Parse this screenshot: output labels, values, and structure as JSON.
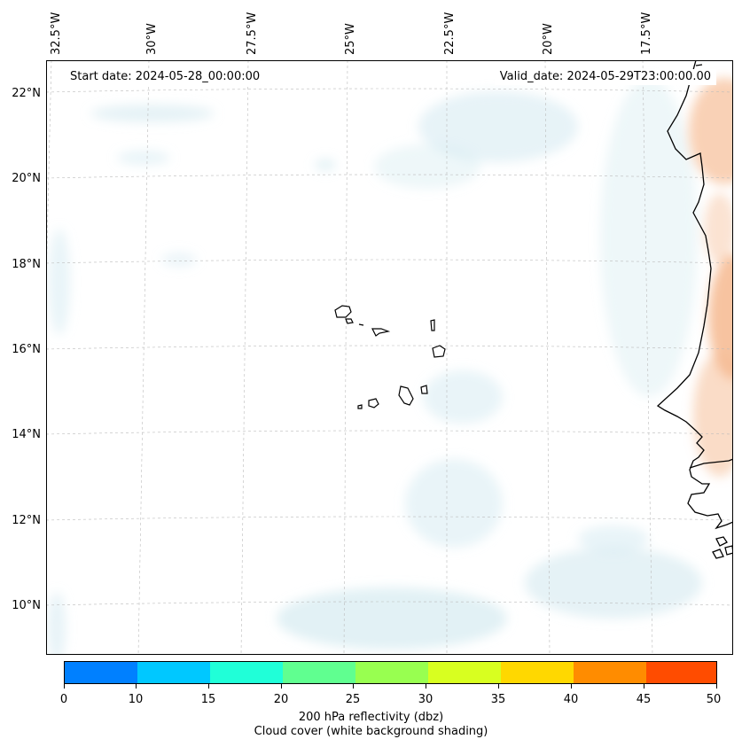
{
  "map": {
    "start_date": "Start date: 2024-05-28_00:00:00",
    "valid_date": "Valid_date: 2024-05-29T23:00:00.00",
    "lon_labels": [
      "32.5°W",
      "30°W",
      "27.5°W",
      "25°W",
      "22.5°W",
      "20°W",
      "17.5°W"
    ],
    "lat_labels": [
      "22°N",
      "20°N",
      "18°N",
      "16°N",
      "14°N",
      "12°N",
      "10°N"
    ],
    "coast_color": "#000000",
    "grid_color": "#bbbbbb",
    "cloud_color": "#cfe7ef",
    "land_warm_color": "#f6b98f"
  },
  "colorbar": {
    "ticks": [
      "0",
      "10",
      "15",
      "20",
      "25",
      "30",
      "35",
      "40",
      "45",
      "50"
    ],
    "colors": [
      "#0080ff",
      "#00c8ff",
      "#20ffd8",
      "#60ff90",
      "#98ff50",
      "#d8ff20",
      "#ffd800",
      "#ff8c00",
      "#ff4c00"
    ],
    "label_line1": "200 hPa reflectivity (dbz)",
    "label_line2": "Cloud cover (white background shading)"
  }
}
